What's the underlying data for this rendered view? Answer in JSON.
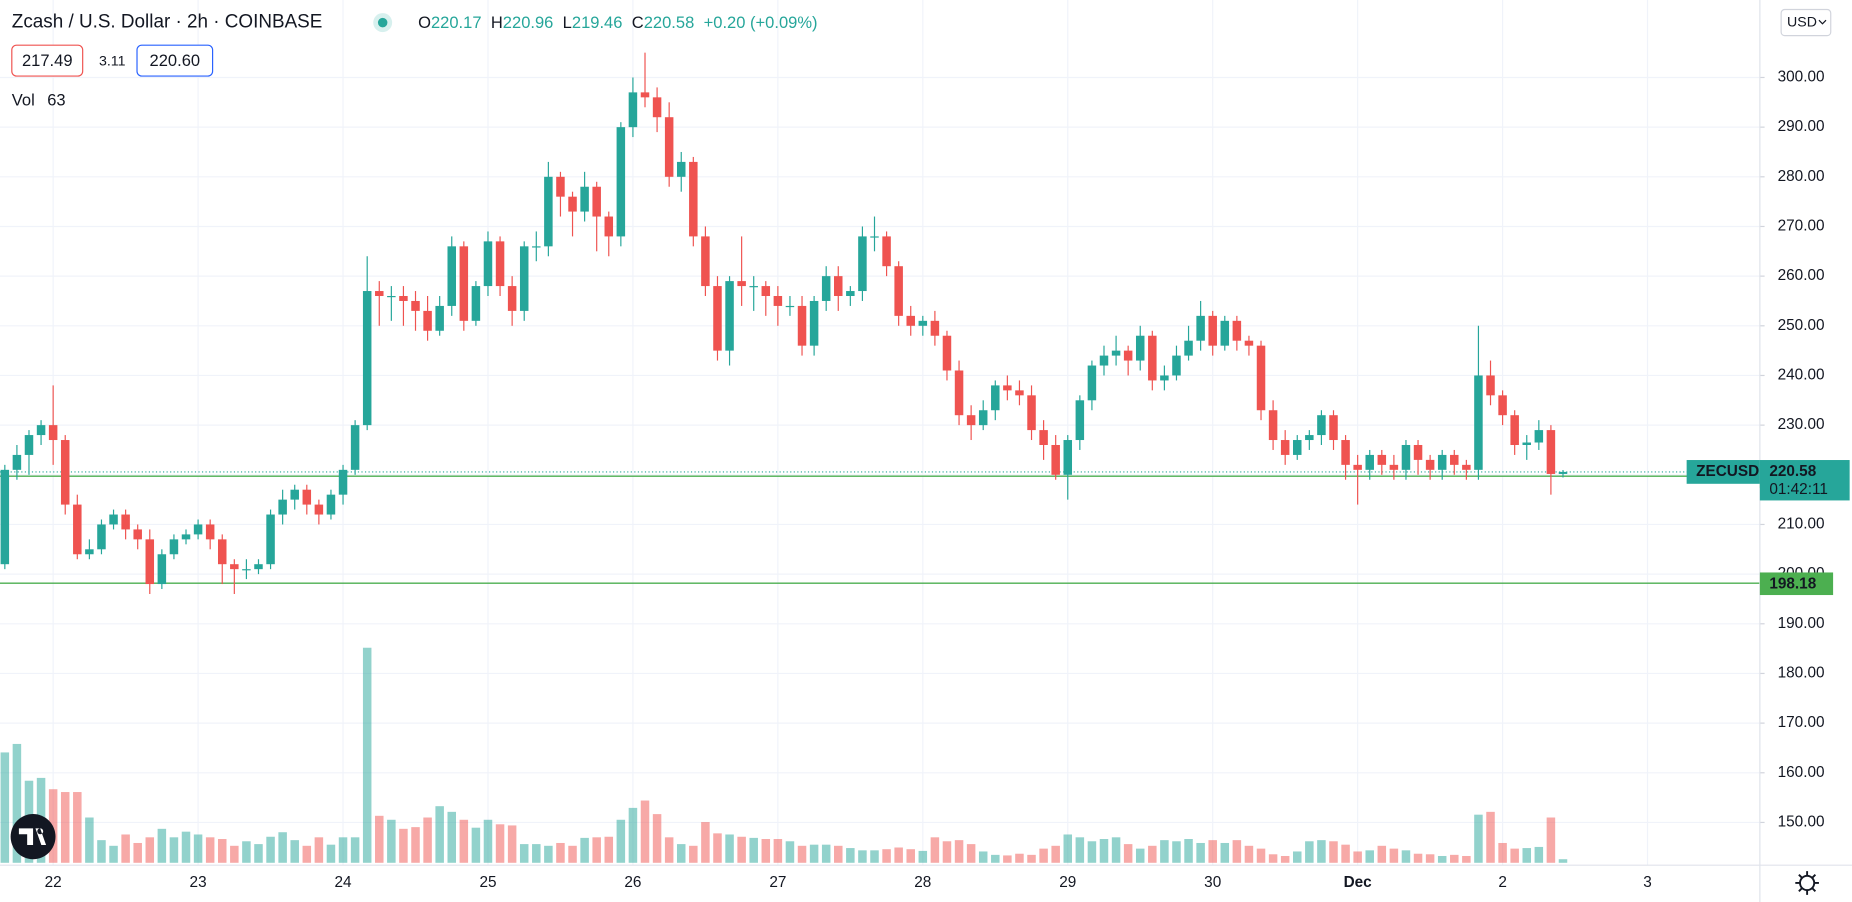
{
  "chart_data": {
    "type": "candlestick",
    "title": "Zcash / U.S. Dollar · 2h · COINBASE",
    "ohlc_labels": [
      "O",
      "H",
      "L",
      "C"
    ],
    "change": "+0.20 (+0.09%)",
    "bid": "217.49",
    "spread": "3.11",
    "ask": "220.60",
    "volume_label": "Vol",
    "ticker": "ZECUSD",
    "countdown": "01:42:11",
    "currency": "USD",
    "up_color": "#26a69a",
    "down_color": "#ef5350",
    "grid": true,
    "open": [
      202,
      221,
      224,
      228,
      230,
      227,
      214,
      204,
      205,
      210,
      212,
      209,
      207,
      198,
      204,
      207,
      208,
      210,
      207,
      202,
      201,
      201,
      202,
      212,
      215,
      217,
      214,
      212,
      216,
      221,
      230,
      257,
      256,
      256,
      255,
      253,
      249,
      254,
      266,
      251,
      258,
      267,
      258,
      253,
      266,
      266,
      280,
      276,
      273,
      278,
      272,
      268,
      290,
      297,
      296,
      292,
      280,
      283,
      268,
      258,
      245,
      259,
      258,
      258,
      256,
      254,
      254,
      246,
      255,
      260,
      256,
      257,
      268,
      268,
      262,
      252,
      250,
      251,
      248,
      241,
      232,
      230,
      233,
      238,
      237,
      236,
      229,
      226,
      220,
      227,
      235,
      242,
      244,
      245,
      243,
      248,
      239,
      240,
      244,
      247,
      252,
      246,
      251,
      247,
      246,
      233,
      227,
      224,
      227,
      228,
      232,
      227,
      222,
      221,
      224,
      222,
      221,
      226,
      223,
      221,
      224,
      222,
      221,
      240,
      236,
      232,
      226,
      226.5,
      229,
      220.17
    ],
    "high": [
      222,
      226,
      229,
      231,
      238,
      228,
      216,
      207,
      211,
      213,
      213,
      210,
      209,
      205,
      208,
      209,
      211,
      211,
      208,
      203,
      203,
      203,
      213,
      217,
      218,
      218,
      215,
      217,
      222,
      231,
      264,
      259,
      258,
      258,
      257,
      256,
      256,
      268,
      267,
      259,
      269,
      268,
      260,
      267,
      269,
      283,
      281,
      277,
      281,
      279,
      273,
      291,
      300,
      305,
      298,
      295,
      285,
      284,
      270,
      260,
      260,
      268,
      260,
      259,
      258,
      256,
      256,
      256,
      262,
      262,
      258,
      270,
      272,
      269,
      263,
      254,
      252,
      253,
      249,
      243,
      234,
      235,
      239,
      240,
      239,
      238,
      231,
      228,
      228,
      236,
      243,
      246,
      248,
      246,
      250,
      249,
      242,
      246,
      250,
      255,
      253,
      252,
      252,
      248,
      247,
      235,
      229,
      228,
      229,
      233,
      233,
      228,
      224,
      225,
      225,
      224,
      227,
      227,
      224,
      225,
      225,
      223,
      250,
      243,
      237,
      233,
      228,
      231,
      230,
      220.96
    ],
    "low": [
      201,
      219,
      220,
      226,
      222,
      212,
      203,
      203,
      204,
      209,
      207,
      205,
      196,
      197,
      203,
      206,
      207,
      205,
      198,
      196,
      199,
      200,
      201,
      210,
      213,
      212,
      210,
      211,
      214,
      220,
      229,
      250,
      251,
      250,
      249,
      247,
      248,
      252,
      249,
      250,
      256,
      256,
      250,
      251,
      263,
      264,
      272,
      268,
      271,
      265,
      264,
      266,
      288,
      294,
      289,
      278,
      277,
      266,
      256,
      243,
      242,
      254,
      253,
      252,
      250,
      252,
      244,
      244,
      253,
      253,
      254,
      255,
      265,
      260,
      250,
      248,
      248,
      246,
      239,
      230,
      227,
      229,
      231,
      235,
      234,
      227,
      223,
      219,
      215,
      225,
      233,
      240,
      242,
      240,
      241,
      237,
      237,
      239,
      243,
      245,
      244,
      245,
      245,
      244,
      231,
      225,
      222,
      223,
      225,
      226,
      225,
      219,
      214,
      219,
      220,
      219,
      219,
      220,
      219,
      219,
      220,
      219,
      219,
      234,
      230,
      224,
      223,
      225,
      216,
      219.46
    ],
    "close": [
      221,
      224,
      228,
      230,
      227,
      214,
      204,
      205,
      210,
      212,
      209,
      207,
      198,
      204,
      207,
      208,
      210,
      207,
      202,
      201,
      201,
      202,
      212,
      215,
      217,
      214,
      212,
      216,
      221,
      230,
      257,
      256,
      256,
      255,
      253,
      249,
      254,
      266,
      251,
      258,
      267,
      258,
      253,
      266,
      266,
      280,
      276,
      273,
      278,
      272,
      268,
      290,
      297,
      296,
      292,
      280,
      283,
      268,
      258,
      245,
      259,
      258,
      258,
      256,
      254,
      254,
      246,
      255,
      260,
      256,
      257,
      268,
      268,
      262,
      252,
      250,
      251,
      248,
      241,
      232,
      230,
      233,
      238,
      237,
      236,
      229,
      226,
      220,
      227,
      235,
      242,
      244,
      245,
      243,
      248,
      239,
      240,
      244,
      247,
      252,
      246,
      251,
      247,
      246,
      233,
      227,
      224,
      227,
      228,
      232,
      227,
      222,
      221,
      224,
      222,
      221,
      226,
      223,
      221,
      224,
      222,
      221,
      240,
      236,
      232,
      226,
      226.5,
      229,
      220.17,
      220.58
    ],
    "volume": [
      1950,
      2100,
      1450,
      1500,
      1300,
      1250,
      1250,
      800,
      400,
      300,
      500,
      350,
      450,
      600,
      450,
      550,
      500,
      450,
      420,
      300,
      380,
      330,
      460,
      540,
      400,
      300,
      450,
      320,
      450,
      450,
      3800,
      830,
      760,
      600,
      630,
      800,
      1000,
      900,
      760,
      620,
      760,
      680,
      660,
      330,
      330,
      300,
      350,
      300,
      440,
      450,
      460,
      760,
      970,
      1100,
      860,
      450,
      330,
      300,
      720,
      520,
      500,
      460,
      440,
      420,
      420,
      380,
      300,
      320,
      320,
      300,
      260,
      220,
      220,
      240,
      270,
      240,
      210,
      450,
      380,
      400,
      330,
      200,
      140,
      130,
      160,
      140,
      250,
      300,
      500,
      450,
      380,
      420,
      450,
      330,
      250,
      300,
      400,
      380,
      420,
      350,
      400,
      350,
      400,
      300,
      250,
      150,
      120,
      200,
      380,
      400,
      380,
      320,
      200,
      220,
      300,
      250,
      220,
      160,
      150,
      120,
      140,
      120,
      850,
      900,
      350,
      250,
      260,
      280,
      800,
      63
    ],
    "ylim": [
      141.4,
      315.6
    ],
    "yticks": [
      {
        "value": 150,
        "label": "150.00"
      },
      {
        "value": 160,
        "label": "160.00"
      },
      {
        "value": 170,
        "label": "170.00"
      },
      {
        "value": 180,
        "label": "180.00"
      },
      {
        "value": 190,
        "label": "190.00"
      },
      {
        "value": 200,
        "label": "200.00"
      },
      {
        "value": 210,
        "label": "210.00"
      },
      {
        "value": 220,
        "label": "220.00"
      },
      {
        "value": 230,
        "label": "230.00"
      },
      {
        "value": 240,
        "label": "240.00"
      },
      {
        "value": 250,
        "label": "250.00"
      },
      {
        "value": 260,
        "label": "260.00"
      },
      {
        "value": 270,
        "label": "270.00"
      },
      {
        "value": 280,
        "label": "280.00"
      },
      {
        "value": 290,
        "label": "290.00"
      },
      {
        "value": 300,
        "label": "300.00"
      }
    ],
    "xlim": [
      -0.4,
      145.3
    ],
    "xticks": [
      {
        "value": 4,
        "label": "22"
      },
      {
        "value": 16,
        "label": "23"
      },
      {
        "value": 28,
        "label": "24"
      },
      {
        "value": 40,
        "label": "25"
      },
      {
        "value": 52,
        "label": "26"
      },
      {
        "value": 64,
        "label": "27"
      },
      {
        "value": 76,
        "label": "28"
      },
      {
        "value": 88,
        "label": "29"
      },
      {
        "value": 100,
        "label": "30"
      },
      {
        "value": 112,
        "label": "Dec"
      },
      {
        "value": 124,
        "label": "2"
      },
      {
        "value": 136,
        "label": "3"
      }
    ],
    "volume_ylim": [
      0,
      4200
    ],
    "price_lines": [
      {
        "value": 219.72,
        "color": "#4caf50"
      },
      {
        "value": 198.18,
        "color": "#4caf50"
      }
    ]
  }
}
